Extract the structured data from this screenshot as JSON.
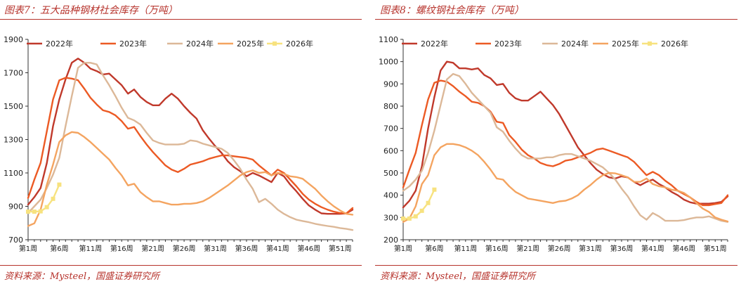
{
  "panels": [
    {
      "title": "图表7：五大品种钢材社会库存（万吨）",
      "source": "资料来源：Mysteel，国盛证券研究所",
      "chart_data": {
        "type": "line",
        "xlabel": "",
        "ylabel": "",
        "ylim": [
          700,
          1900
        ],
        "yticks": [
          700,
          900,
          1100,
          1300,
          1500,
          1700,
          1900
        ],
        "xlim": [
          1,
          53
        ],
        "xtick_labels": [
          {
            "week": 1,
            "label": "第1周"
          },
          {
            "week": 6,
            "label": "第6周"
          },
          {
            "week": 11,
            "label": "第11周"
          },
          {
            "week": 16,
            "label": "第16周"
          },
          {
            "week": 21,
            "label": "第21周"
          },
          {
            "week": 26,
            "label": "第26周"
          },
          {
            "week": 31,
            "label": "第31周"
          },
          {
            "week": 36,
            "label": "第36周"
          },
          {
            "week": 41,
            "label": "第41周"
          },
          {
            "week": 46,
            "label": "第46周"
          },
          {
            "week": 51,
            "label": "第51周"
          }
        ],
        "legend_position": "top",
        "series": [
          {
            "name": "2022年",
            "color": "#c0392b",
            "marker": "none",
            "values": [
              910,
              955,
              1010,
              1160,
              1380,
              1540,
              1660,
              1760,
              1785,
              1760,
              1725,
              1710,
              1690,
              1695,
              1660,
              1625,
              1575,
              1600,
              1555,
              1525,
              1505,
              1505,
              1545,
              1575,
              1545,
              1500,
              1460,
              1425,
              1355,
              1305,
              1260,
              1220,
              1170,
              1135,
              1110,
              1080,
              1100,
              1085,
              1065,
              1045,
              1100,
              1080,
              1030,
              990,
              945,
              905,
              880,
              858,
              855,
              855,
              855,
              858,
              880
            ]
          },
          {
            "name": "2023年",
            "color": "#ec5a24",
            "marker": "none",
            "values": [
              950,
              1060,
              1160,
              1350,
              1540,
              1655,
              1670,
              1665,
              1655,
              1605,
              1550,
              1510,
              1475,
              1465,
              1445,
              1410,
              1365,
              1375,
              1320,
              1270,
              1225,
              1185,
              1145,
              1120,
              1105,
              1125,
              1150,
              1160,
              1170,
              1185,
              1195,
              1205,
              1205,
              1200,
              1195,
              1190,
              1180,
              1145,
              1115,
              1085,
              1120,
              1100,
              1060,
              1020,
              975,
              940,
              915,
              895,
              880,
              868,
              860,
              857,
              890
            ]
          },
          {
            "name": "2024年",
            "color": "#dcb898",
            "marker": "none",
            "values": [
              860,
              900,
              940,
              1010,
              1090,
              1190,
              1380,
              1560,
              1730,
              1760,
              1760,
              1750,
              1685,
              1625,
              1560,
              1490,
              1430,
              1415,
              1390,
              1340,
              1295,
              1280,
              1270,
              1270,
              1270,
              1275,
              1295,
              1290,
              1275,
              1265,
              1255,
              1245,
              1220,
              1175,
              1125,
              1060,
              1005,
              925,
              945,
              915,
              880,
              855,
              835,
              820,
              812,
              805,
              795,
              788,
              782,
              777,
              770,
              765,
              758
            ]
          },
          {
            "name": "2025年",
            "color": "#f4a460",
            "marker": "none",
            "values": [
              782,
              798,
              880,
              1030,
              1150,
              1285,
              1325,
              1345,
              1340,
              1315,
              1285,
              1250,
              1215,
              1180,
              1130,
              1085,
              1025,
              1035,
              985,
              955,
              930,
              930,
              920,
              910,
              910,
              915,
              915,
              920,
              930,
              950,
              975,
              1000,
              1025,
              1055,
              1085,
              1105,
              1115,
              1100,
              1105,
              1085,
              1100,
              1095,
              1080,
              1075,
              1065,
              1035,
              1005,
              965,
              930,
              900,
              875,
              855,
              850
            ]
          },
          {
            "name": "2026年",
            "color": "#f7e27f",
            "marker": "square",
            "values": [
              868,
              868,
              870,
              895,
              945,
              1030
            ]
          }
        ]
      }
    },
    {
      "title": "图表8：螺纹钢社会库存（万吨）",
      "source": "资料来源：Mysteel，国盛证券研究所",
      "chart_data": {
        "type": "line",
        "xlabel": "",
        "ylabel": "",
        "ylim": [
          200,
          1100
        ],
        "yticks": [
          200,
          300,
          400,
          500,
          600,
          700,
          800,
          900,
          1000,
          1100
        ],
        "xlim": [
          1,
          53
        ],
        "xtick_labels": [
          {
            "week": 1,
            "label": "第1周"
          },
          {
            "week": 6,
            "label": "第6周"
          },
          {
            "week": 11,
            "label": "第11周"
          },
          {
            "week": 16,
            "label": "第16周"
          },
          {
            "week": 21,
            "label": "第21周"
          },
          {
            "week": 26,
            "label": "第26周"
          },
          {
            "week": 31,
            "label": "第31周"
          },
          {
            "week": 36,
            "label": "第36周"
          },
          {
            "week": 41,
            "label": "第41周"
          },
          {
            "week": 46,
            "label": "第46周"
          },
          {
            "week": 51,
            "label": "第51周"
          }
        ],
        "legend_position": "top",
        "series": [
          {
            "name": "2022年",
            "color": "#c0392b",
            "marker": "none",
            "values": [
              345,
              375,
              420,
              530,
              700,
              840,
              960,
              1000,
              995,
              970,
              970,
              965,
              970,
              940,
              925,
              895,
              900,
              860,
              835,
              825,
              825,
              845,
              865,
              835,
              805,
              765,
              715,
              665,
              615,
              580,
              545,
              515,
              495,
              480,
              475,
              485,
              480,
              460,
              445,
              460,
              470,
              450,
              435,
              415,
              400,
              380,
              368,
              362,
              362,
              362,
              365,
              370,
              395
            ]
          },
          {
            "name": "2023年",
            "color": "#ec5a24",
            "marker": "none",
            "values": [
              435,
              515,
              590,
              715,
              830,
              905,
              915,
              910,
              890,
              865,
              845,
              820,
              815,
              800,
              775,
              730,
              725,
              670,
              640,
              605,
              580,
              565,
              545,
              535,
              530,
              540,
              555,
              560,
              570,
              580,
              590,
              605,
              610,
              600,
              590,
              580,
              570,
              550,
              520,
              490,
              505,
              490,
              465,
              445,
              420,
              405,
              390,
              370,
              355,
              355,
              360,
              365,
              400
            ]
          },
          {
            "name": "2024年",
            "color": "#dcb898",
            "marker": "none",
            "values": [
              420,
              440,
              470,
              510,
              590,
              690,
              805,
              920,
              945,
              935,
              900,
              860,
              830,
              800,
              770,
              705,
              685,
              645,
              610,
              580,
              565,
              565,
              565,
              570,
              570,
              580,
              585,
              585,
              575,
              565,
              555,
              540,
              525,
              500,
              470,
              430,
              395,
              350,
              310,
              290,
              320,
              305,
              285,
              285,
              285,
              288,
              295,
              300,
              300,
              305,
              295,
              285,
              280
            ]
          },
          {
            "name": "2025年",
            "color": "#f4a460",
            "marker": "none",
            "values": [
              280,
              295,
              350,
              450,
              490,
              580,
              615,
              630,
              630,
              625,
              615,
              600,
              580,
              550,
              515,
              475,
              470,
              440,
              415,
              400,
              385,
              380,
              375,
              370,
              365,
              372,
              375,
              385,
              400,
              425,
              445,
              470,
              490,
              500,
              498,
              490,
              480,
              460,
              460,
              475,
              450,
              440,
              435,
              425,
              420,
              410,
              390,
              365,
              340,
              325,
              300,
              290,
              282
            ]
          },
          {
            "name": "2026年",
            "color": "#f7e27f",
            "marker": "square",
            "values": [
              295,
              295,
              305,
              330,
              365,
              425
            ]
          }
        ]
      }
    }
  ]
}
